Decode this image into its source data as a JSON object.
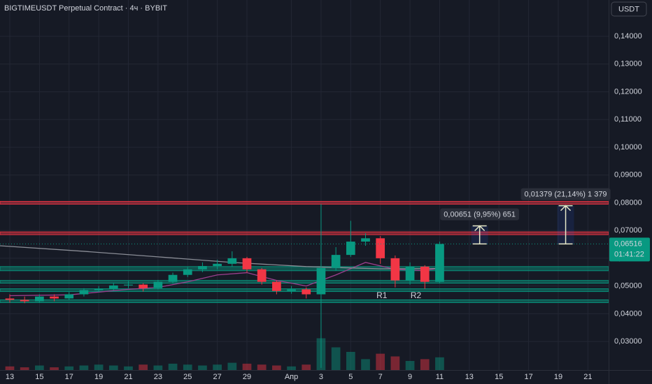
{
  "chart_data": {
    "type": "candlestick",
    "title": "BIGTIMEUSDT Perpetual Contract · 4ч · BYBIT",
    "currency_button": "USDT",
    "x": [
      0,
      1,
      2,
      3,
      4,
      5,
      6,
      7,
      8,
      9,
      10,
      11,
      12,
      13,
      14,
      15,
      16,
      17,
      18,
      19,
      20,
      21,
      22,
      23,
      24,
      25,
      26,
      27,
      28,
      29
    ],
    "open": [
      0.0455,
      0.045,
      0.0445,
      0.0462,
      0.0455,
      0.047,
      0.0485,
      0.049,
      0.0502,
      0.0505,
      0.0492,
      0.0515,
      0.054,
      0.056,
      0.0572,
      0.058,
      0.06,
      0.056,
      0.0515,
      0.0482,
      0.0488,
      0.047,
      0.0565,
      0.0612,
      0.066,
      0.0672,
      0.06,
      0.052,
      0.057,
      0.0515
    ],
    "high": [
      0.047,
      0.0462,
      0.047,
      0.047,
      0.0478,
      0.0492,
      0.05,
      0.0512,
      0.0518,
      0.051,
      0.0522,
      0.0548,
      0.0568,
      0.0585,
      0.0595,
      0.0625,
      0.0605,
      0.0565,
      0.052,
      0.05,
      0.0495,
      0.0795,
      0.064,
      0.0735,
      0.069,
      0.068,
      0.061,
      0.0585,
      0.0575,
      0.066
    ],
    "low": [
      0.044,
      0.0438,
      0.044,
      0.0445,
      0.045,
      0.0462,
      0.0478,
      0.0484,
      0.0492,
      0.048,
      0.0488,
      0.0508,
      0.0532,
      0.055,
      0.056,
      0.057,
      0.0548,
      0.0505,
      0.047,
      0.0472,
      0.0455,
      0.0205,
      0.0555,
      0.0605,
      0.0645,
      0.058,
      0.0495,
      0.0505,
      0.049,
      0.051
    ],
    "close": [
      0.045,
      0.0445,
      0.0462,
      0.0455,
      0.047,
      0.0485,
      0.049,
      0.0502,
      0.0505,
      0.0492,
      0.0515,
      0.054,
      0.056,
      0.0572,
      0.058,
      0.06,
      0.056,
      0.0515,
      0.0482,
      0.0488,
      0.047,
      0.0565,
      0.0612,
      0.066,
      0.0672,
      0.06,
      0.052,
      0.057,
      0.0515,
      0.06516
    ],
    "volume": [
      4,
      3,
      5,
      3,
      4,
      5,
      6,
      5,
      4,
      6,
      5,
      7,
      6,
      5,
      6,
      8,
      7,
      6,
      5,
      4,
      6,
      35,
      25,
      20,
      12,
      18,
      15,
      10,
      12,
      14
    ],
    "volume_ylim": [
      0,
      100
    ],
    "up_color": "#089981",
    "down_color": "#f23645",
    "moving_averages": [
      {
        "color": "#9c3f8e",
        "x": [
          0,
          4,
          8,
          10,
          12,
          14,
          16,
          18,
          20,
          22,
          24,
          26,
          28,
          29
        ],
        "values": [
          0.0465,
          0.0468,
          0.0488,
          0.0495,
          0.0515,
          0.054,
          0.0548,
          0.052,
          0.05,
          0.054,
          0.0585,
          0.056,
          0.0555,
          0.0565
        ]
      },
      {
        "color": "#8a8d96",
        "x": [
          -0.66,
          5,
          10,
          15,
          20,
          25,
          29
        ],
        "values": [
          0.0645,
          0.0625,
          0.0605,
          0.0585,
          0.057,
          0.0562,
          0.0563
        ]
      }
    ],
    "zones": [
      {
        "low": 0.0795,
        "high": 0.0805,
        "color": "#f23645"
      },
      {
        "low": 0.0685,
        "high": 0.0695,
        "color": "#f23645"
      },
      {
        "low": 0.0555,
        "high": 0.057,
        "color": "#089981"
      },
      {
        "low": 0.051,
        "high": 0.052,
        "color": "#089981"
      },
      {
        "low": 0.048,
        "high": 0.049,
        "color": "#089981"
      },
      {
        "low": 0.044,
        "high": 0.045,
        "color": "#089981"
      }
    ],
    "annotations": [
      "R1",
      "R2"
    ],
    "measurements": [
      {
        "x": 31.7,
        "from": 0.06516,
        "to": 0.07167,
        "label": "0,00651 (9,95%) 651"
      },
      {
        "x": 37.5,
        "from": 0.06516,
        "to": 0.07895,
        "label": "0,01379 (21,14%) 1 379"
      }
    ],
    "last_price": {
      "value": 0.06516,
      "label": "0,06516"
    },
    "countdown": "01:41:22",
    "xlim": [
      -0.66,
      40.4
    ],
    "ylim": [
      0.0197,
      0.1531
    ],
    "yticks": [
      {
        "value": 0.14,
        "label": "0,14000"
      },
      {
        "value": 0.13,
        "label": "0,13000"
      },
      {
        "value": 0.12,
        "label": "0,12000"
      },
      {
        "value": 0.11,
        "label": "0,11000"
      },
      {
        "value": 0.1,
        "label": "0,10000"
      },
      {
        "value": 0.09,
        "label": "0,09000"
      },
      {
        "value": 0.08,
        "label": "0,08000"
      },
      {
        "value": 0.07,
        "label": "0,07000"
      },
      {
        "value": 0.06,
        "label": "0,06000"
      },
      {
        "value": 0.05,
        "label": "0,05000"
      },
      {
        "value": 0.04,
        "label": "0,04000"
      },
      {
        "value": 0.03,
        "label": "0,03000"
      }
    ],
    "xticks": [
      {
        "value": 0,
        "label": "13"
      },
      {
        "value": 2,
        "label": "15"
      },
      {
        "value": 4,
        "label": "17"
      },
      {
        "value": 6,
        "label": "19"
      },
      {
        "value": 8,
        "label": "21"
      },
      {
        "value": 10,
        "label": "23"
      },
      {
        "value": 12,
        "label": "25"
      },
      {
        "value": 14,
        "label": "27"
      },
      {
        "value": 16,
        "label": "29"
      },
      {
        "value": 19,
        "label": "Апр"
      },
      {
        "value": 21,
        "label": "3"
      },
      {
        "value": 23,
        "label": "5"
      },
      {
        "value": 25,
        "label": "7"
      },
      {
        "value": 27,
        "label": "9"
      },
      {
        "value": 29,
        "label": "11"
      },
      {
        "value": 31,
        "label": "13"
      },
      {
        "value": 33,
        "label": "15"
      },
      {
        "value": 35,
        "label": "17"
      },
      {
        "value": 37,
        "label": "19"
      },
      {
        "value": 39,
        "label": "21"
      }
    ],
    "grid": true
  }
}
